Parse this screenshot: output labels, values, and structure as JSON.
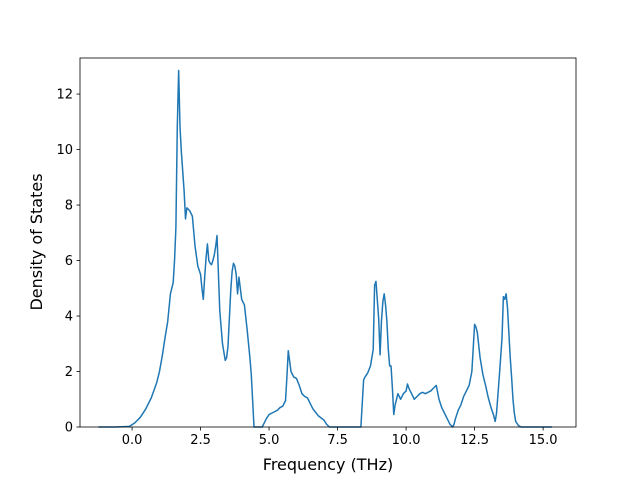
{
  "chart_data": {
    "type": "line",
    "title": "",
    "xlabel": "Frequency (THz)",
    "ylabel": "Density of States",
    "xlim": [
      -1.9,
      16.2
    ],
    "ylim": [
      0,
      13.3
    ],
    "xticks": [
      0.0,
      2.5,
      5.0,
      7.5,
      10.0,
      12.5,
      15.0
    ],
    "xtick_labels": [
      "0.0",
      "2.5",
      "5.0",
      "7.5",
      "10.0",
      "12.5",
      "15.0"
    ],
    "yticks": [
      0,
      2,
      4,
      6,
      8,
      10,
      12
    ],
    "ytick_labels": [
      "0",
      "2",
      "4",
      "6",
      "8",
      "10",
      "12"
    ],
    "grid": false,
    "series": [
      {
        "color": "#1f77b4",
        "x": [
          -1.2,
          -0.6,
          -0.1,
          0.1,
          0.3,
          0.5,
          0.7,
          0.9,
          1.0,
          1.1,
          1.2,
          1.3,
          1.4,
          1.5,
          1.55,
          1.6,
          1.65,
          1.7,
          1.75,
          1.8,
          1.9,
          1.95,
          2.0,
          2.1,
          2.2,
          2.3,
          2.4,
          2.5,
          2.55,
          2.6,
          2.65,
          2.7,
          2.75,
          2.8,
          2.85,
          2.9,
          2.95,
          3.0,
          3.05,
          3.1,
          3.2,
          3.3,
          3.4,
          3.45,
          3.5,
          3.6,
          3.65,
          3.7,
          3.75,
          3.8,
          3.85,
          3.9,
          4.0,
          4.1,
          4.2,
          4.3,
          4.35,
          4.45,
          4.55,
          4.65,
          4.75,
          4.9,
          5.0,
          5.1,
          5.2,
          5.3,
          5.4,
          5.5,
          5.6,
          5.65,
          5.7,
          5.8,
          5.9,
          6.0,
          6.1,
          6.2,
          6.3,
          6.4,
          6.5,
          6.6,
          6.8,
          7.0,
          7.1,
          7.2,
          7.5,
          8.0,
          8.35,
          8.45,
          8.5,
          8.6,
          8.7,
          8.8,
          8.85,
          8.9,
          9.0,
          9.05,
          9.1,
          9.15,
          9.2,
          9.25,
          9.3,
          9.35,
          9.4,
          9.45,
          9.5,
          9.55,
          9.6,
          9.65,
          9.7,
          9.8,
          9.9,
          10.0,
          10.05,
          10.1,
          10.2,
          10.3,
          10.4,
          10.5,
          10.6,
          10.7,
          10.8,
          10.9,
          11.0,
          11.1,
          11.2,
          11.3,
          11.4,
          11.5,
          11.6,
          11.7,
          11.75,
          11.8,
          11.9,
          12.0,
          12.1,
          12.2,
          12.3,
          12.4,
          12.5,
          12.55,
          12.6,
          12.7,
          12.8,
          12.9,
          13.0,
          13.1,
          13.2,
          13.25,
          13.3,
          13.4,
          13.5,
          13.55,
          13.6,
          13.65,
          13.7,
          13.8,
          13.85,
          13.9,
          13.95,
          14.0,
          14.1,
          14.2,
          14.5,
          15.0,
          15.3
        ],
        "y": [
          0,
          0,
          0.02,
          0.15,
          0.35,
          0.65,
          1.05,
          1.6,
          2.0,
          2.55,
          3.2,
          3.8,
          4.8,
          5.2,
          6.0,
          7.2,
          10.8,
          12.85,
          10.8,
          9.9,
          8.5,
          7.5,
          7.9,
          7.8,
          7.6,
          6.5,
          5.8,
          5.5,
          5.0,
          4.6,
          5.4,
          6.1,
          6.6,
          6.0,
          5.9,
          5.85,
          6.0,
          6.2,
          6.5,
          6.9,
          4.2,
          3.0,
          2.4,
          2.5,
          2.9,
          4.9,
          5.6,
          5.9,
          5.8,
          5.5,
          4.8,
          5.4,
          4.6,
          4.4,
          3.5,
          2.5,
          1.9,
          0,
          0,
          0,
          0,
          0.3,
          0.45,
          0.5,
          0.55,
          0.6,
          0.7,
          0.75,
          0.95,
          1.8,
          2.75,
          2.0,
          1.8,
          1.75,
          1.5,
          1.2,
          1.1,
          1.05,
          0.85,
          0.65,
          0.4,
          0.25,
          0.1,
          0,
          0,
          0,
          0,
          1.7,
          1.8,
          1.95,
          2.2,
          2.8,
          5.1,
          5.25,
          3.9,
          2.6,
          3.8,
          4.5,
          4.8,
          4.4,
          3.8,
          2.8,
          2.2,
          2.2,
          1.4,
          0.45,
          0.8,
          1.0,
          1.2,
          1.0,
          1.2,
          1.3,
          1.55,
          1.4,
          1.2,
          1.0,
          1.1,
          1.2,
          1.25,
          1.2,
          1.25,
          1.3,
          1.4,
          1.5,
          1.0,
          0.7,
          0.5,
          0.3,
          0.1,
          0,
          0.1,
          0.3,
          0.6,
          0.8,
          1.1,
          1.3,
          1.5,
          2.0,
          3.7,
          3.6,
          3.4,
          2.5,
          1.9,
          1.5,
          1.05,
          0.7,
          0.4,
          0.2,
          0.5,
          1.8,
          3.2,
          4.7,
          4.6,
          4.8,
          4.3,
          2.5,
          1.8,
          1.0,
          0.5,
          0.2,
          0.05,
          0,
          0,
          0,
          0
        ]
      }
    ]
  }
}
